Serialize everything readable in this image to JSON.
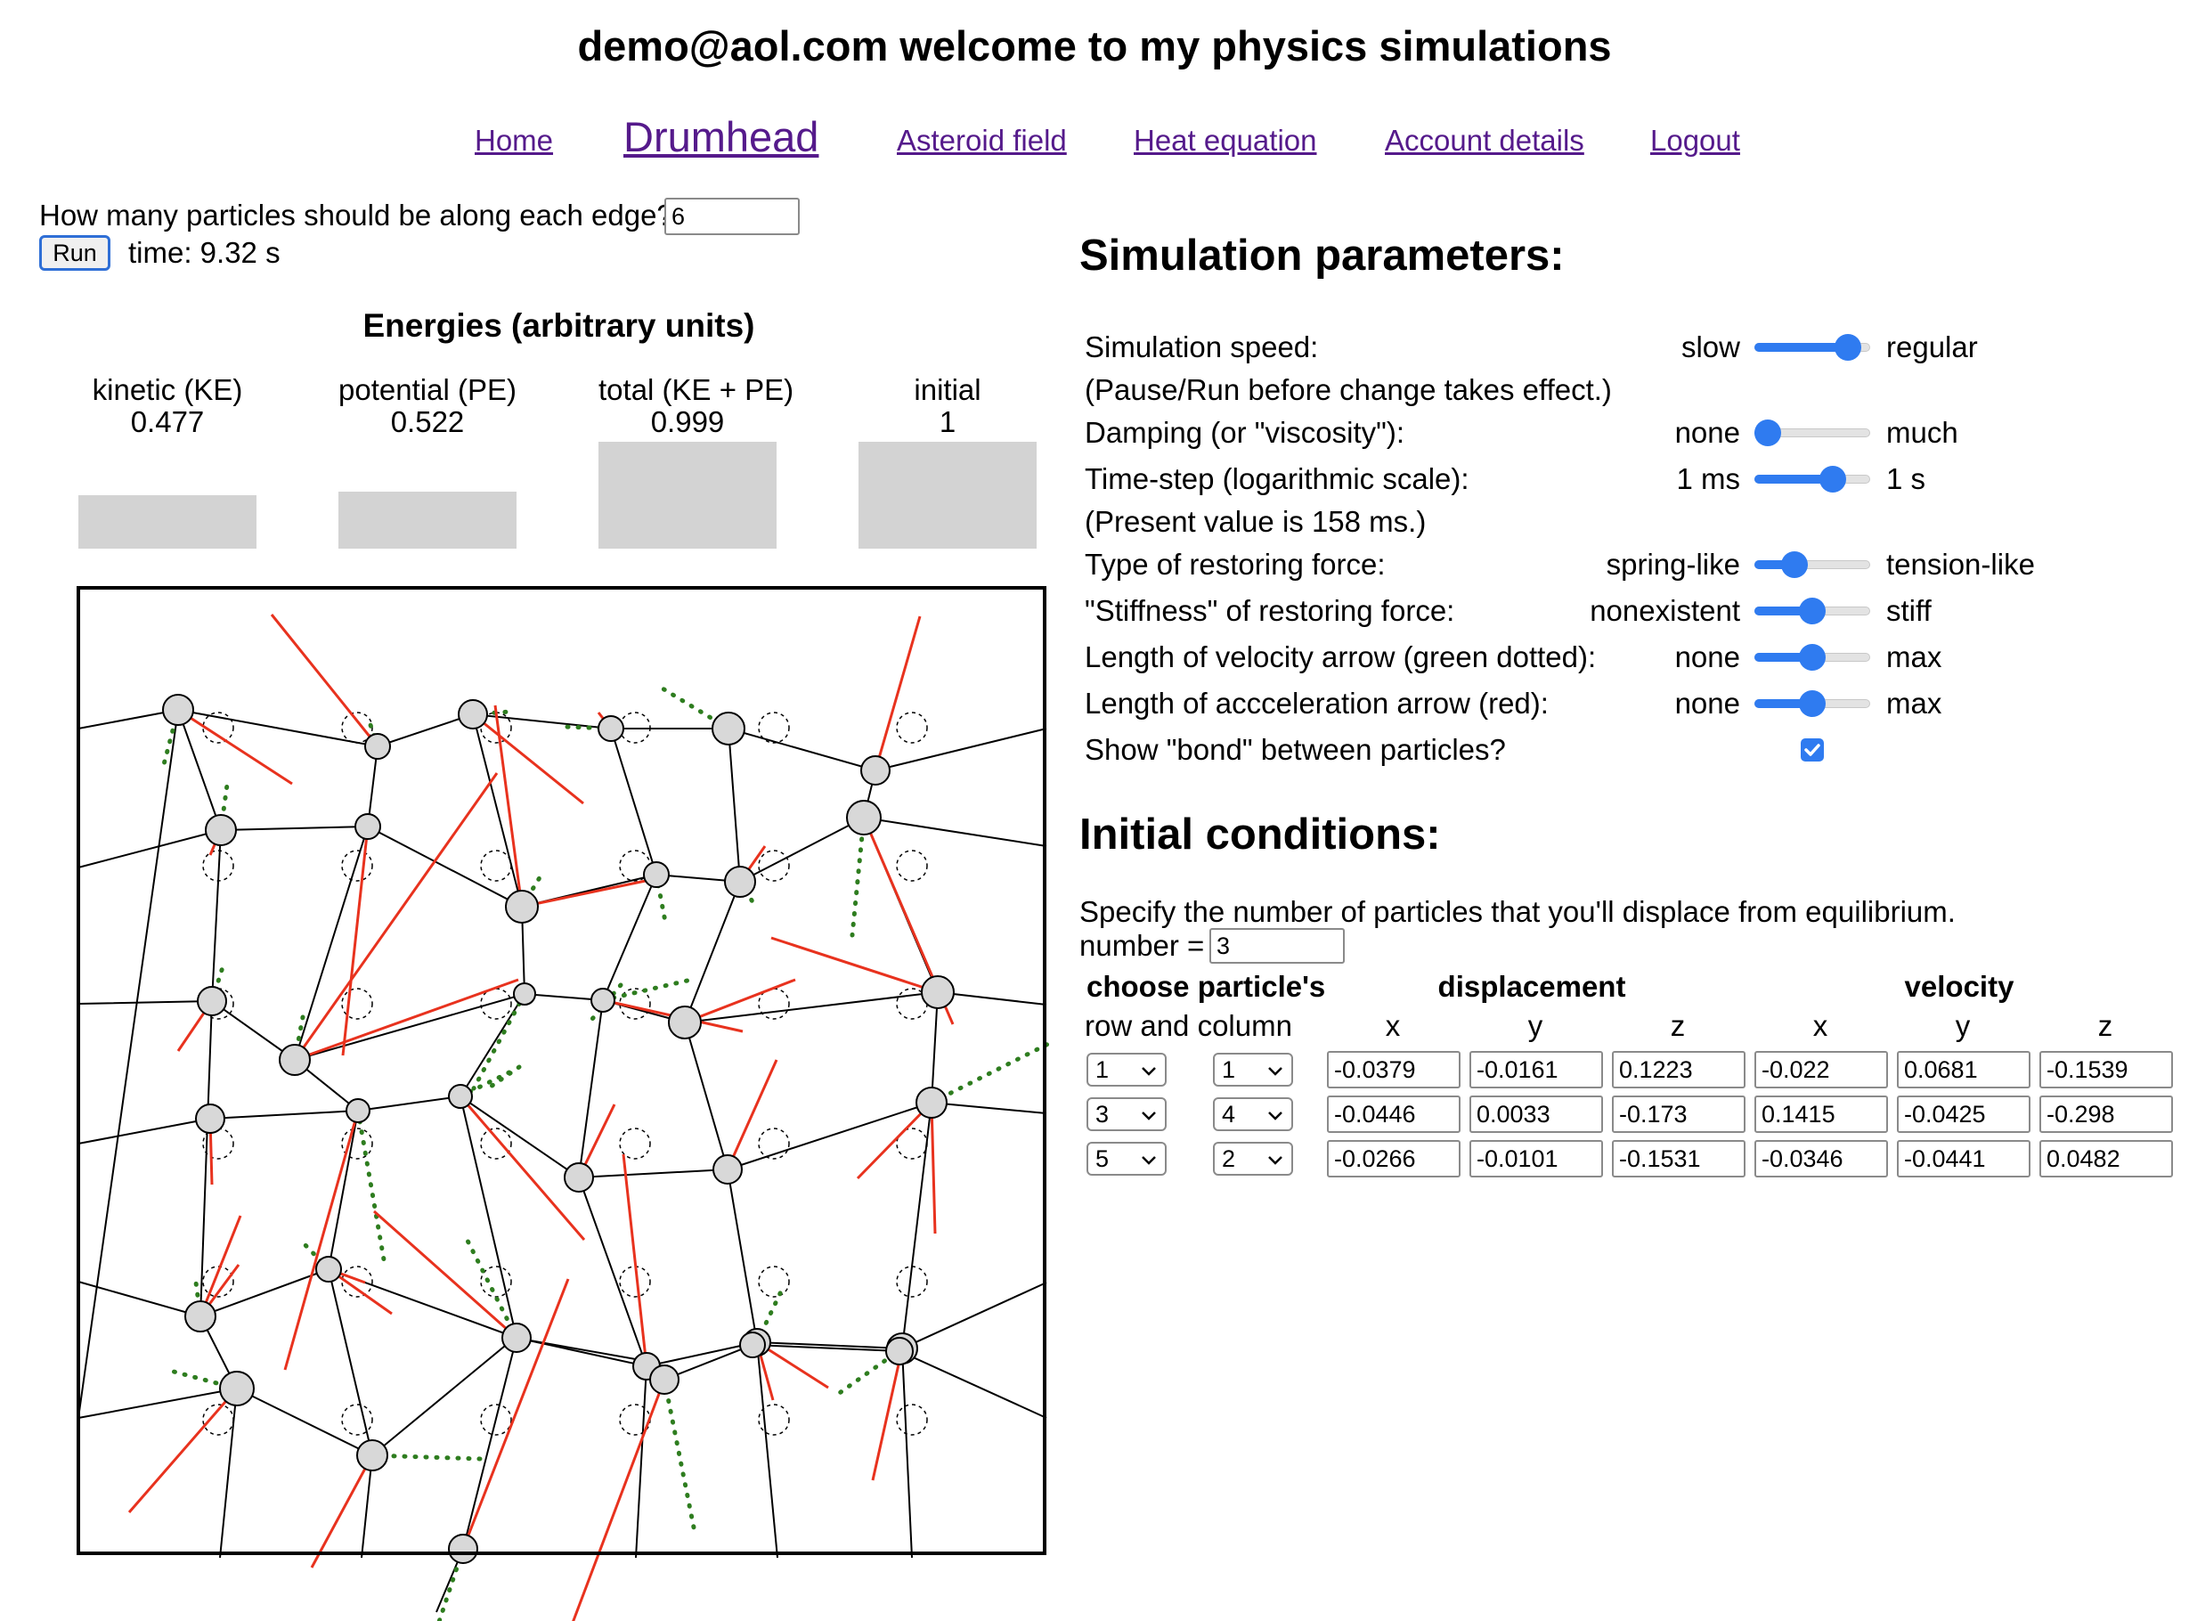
{
  "header": {
    "title": "demo@aol.com welcome to my physics simulations"
  },
  "nav": {
    "items": [
      {
        "label": "Home"
      },
      {
        "label": "Drumhead"
      },
      {
        "label": "Asteroid field"
      },
      {
        "label": "Heat equation"
      },
      {
        "label": "Account details"
      },
      {
        "label": "Logout"
      }
    ]
  },
  "controls": {
    "edge_prompt": "How many particles should be along each edge?",
    "edge_value": "6",
    "run_label": "Run",
    "time_text": "time: 9.32 s"
  },
  "energies": {
    "title": "Energies (arbitrary units)",
    "items": [
      {
        "label": "kinetic (KE)",
        "value": "0.477"
      },
      {
        "label": "potential (PE)",
        "value": "0.522"
      },
      {
        "label": "total (KE + PE)",
        "value": "0.999"
      },
      {
        "label": "initial",
        "value": "1"
      }
    ]
  },
  "sim_params": {
    "title": "Simulation parameters:",
    "speed_label": "Simulation speed:",
    "speed_note": "(Pause/Run before change takes effect.)",
    "speed_min": "slow",
    "speed_max": "regular",
    "speed_level": 0.9,
    "damping_label": "Damping (or \"viscosity\"):",
    "damping_min": "none",
    "damping_max": "much",
    "damping_level": 0.0,
    "timestep_label": "Time-step (logarithmic scale):",
    "timestep_min": "1 ms",
    "timestep_max": "1 s",
    "timestep_level": 0.73,
    "timestep_note": "(Present value is 158 ms.)",
    "force_type_label": "Type of restoring force:",
    "force_type_min": "spring-like",
    "force_type_max": "tension-like",
    "force_type_level": 0.3,
    "stiffness_label": "\"Stiffness\" of restoring force:",
    "stiffness_min": "nonexistent",
    "stiffness_max": "stiff",
    "stiffness_level": 0.5,
    "vel_arrow_label": "Length of velocity arrow (green dotted):",
    "vel_arrow_min": "none",
    "vel_arrow_max": "max",
    "vel_arrow_level": 0.5,
    "acc_arrow_label": "Length of accceleration arrow (red):",
    "acc_arrow_min": "none",
    "acc_arrow_max": "max",
    "acc_arrow_level": 0.5,
    "bond_label": "Show \"bond\" between particles?",
    "bond_checked": true
  },
  "initial": {
    "title": "Initial conditions:",
    "instruction": "Specify the number of particles that you'll displace from equilibrium.",
    "number_label": "number =",
    "number_value": "3",
    "hdr_choose": "choose particle's",
    "hdr_rowcol": "row and column",
    "hdr_disp": "displacement",
    "hdr_vel": "velocity",
    "hdr_x": "x",
    "hdr_y": "y",
    "hdr_z": "z",
    "rows": [
      {
        "row": "1",
        "col": "1",
        "dx": "-0.0379",
        "dy": "-0.0161",
        "dz": "0.1223",
        "vx": "-0.022",
        "vy": "0.0681",
        "vz": "-0.1539"
      },
      {
        "row": "3",
        "col": "4",
        "dx": "-0.0446",
        "dy": "0.0033",
        "dz": "-0.173",
        "vx": "0.1415",
        "vy": "-0.0425",
        "vz": "-0.298"
      },
      {
        "row": "5",
        "col": "2",
        "dx": "-0.0266",
        "dy": "-0.0101",
        "dz": "-0.1531",
        "vx": "-0.0346",
        "vy": "-0.0441",
        "vz": "0.0482"
      }
    ]
  },
  "colors": {
    "link": "#551a8b",
    "accent": "#2f7bf0",
    "bar": "#d3d3d3",
    "acceleration": "#e8321e",
    "velocity": "#2e7d1f"
  }
}
